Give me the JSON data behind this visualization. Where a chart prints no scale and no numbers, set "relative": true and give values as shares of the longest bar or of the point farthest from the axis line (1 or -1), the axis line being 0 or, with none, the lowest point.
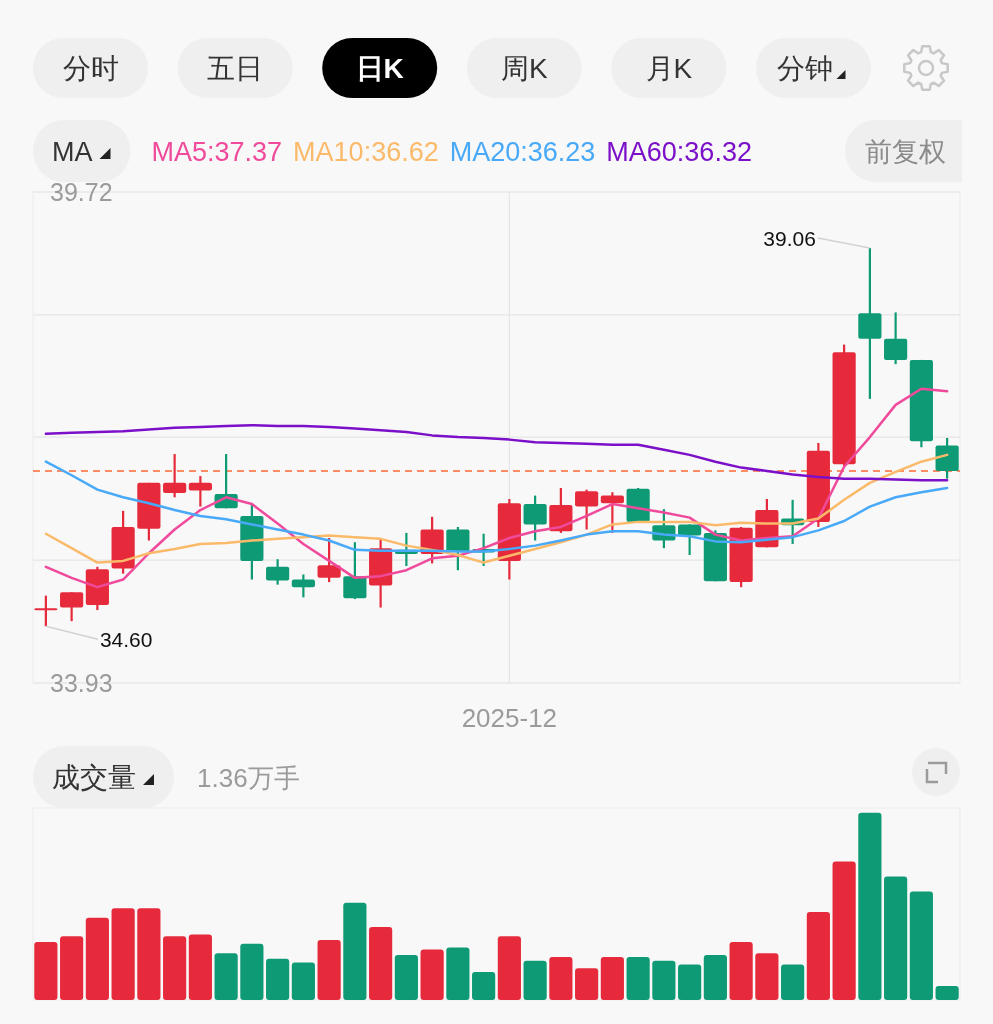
{
  "chart_data": [
    {
      "type": "other",
      "categories": [
        "分时",
        "五日",
        "日K",
        "周K",
        "月K",
        "分钟"
      ],
      "colors": [
        "#efefef",
        "#efefef",
        "#000000",
        "#efefef",
        "#efefef",
        "#efefef"
      ]
    },
    {
      "type": "candlestick",
      "categories": [
        null,
        null,
        null,
        null,
        null,
        null,
        null,
        null,
        null,
        null,
        null,
        null,
        null,
        null,
        null,
        null,
        null,
        null,
        "2025-12",
        null,
        null,
        null,
        null,
        null,
        null,
        null,
        null,
        null,
        null,
        null,
        null,
        null,
        null,
        null,
        null,
        null
      ],
      "ohlc": [
        [
          34.8,
          34.96,
          34.6,
          34.8
        ],
        [
          34.82,
          35.0,
          34.66,
          35.0
        ],
        [
          34.85,
          35.3,
          34.79,
          35.27
        ],
        [
          35.28,
          35.96,
          35.22,
          35.77
        ],
        [
          35.75,
          36.29,
          35.61,
          36.29
        ],
        [
          36.17,
          36.63,
          36.12,
          36.29
        ],
        [
          36.2,
          36.37,
          36.01,
          36.29
        ],
        [
          36.16,
          36.63,
          35.99,
          35.99
        ],
        [
          35.9,
          36.03,
          35.15,
          35.37
        ],
        [
          35.3,
          35.39,
          35.09,
          35.14
        ],
        [
          35.15,
          35.21,
          34.94,
          35.06
        ],
        [
          35.17,
          35.64,
          35.12,
          35.32
        ],
        [
          35.19,
          35.59,
          34.92,
          34.93
        ],
        [
          35.08,
          35.64,
          34.82,
          35.52
        ],
        [
          35.5,
          35.7,
          35.31,
          35.45
        ],
        [
          35.45,
          35.89,
          35.34,
          35.74
        ],
        [
          35.74,
          35.77,
          35.26,
          35.48
        ],
        [
          35.51,
          35.69,
          35.31,
          35.47
        ],
        [
          35.37,
          36.1,
          35.15,
          36.05
        ],
        [
          36.04,
          36.14,
          35.61,
          35.8
        ],
        [
          35.72,
          36.23,
          35.7,
          36.03
        ],
        [
          36.01,
          36.21,
          35.74,
          36.19
        ],
        [
          36.05,
          36.18,
          35.7,
          36.14
        ],
        [
          36.22,
          36.23,
          35.83,
          35.83
        ],
        [
          35.79,
          35.98,
          35.52,
          35.61
        ],
        [
          35.8,
          35.8,
          35.44,
          35.67
        ],
        [
          35.7,
          35.73,
          35.13,
          35.13
        ],
        [
          35.12,
          35.77,
          35.06,
          35.76
        ],
        [
          35.53,
          36.1,
          35.53,
          35.97
        ],
        [
          35.87,
          36.09,
          35.57,
          35.79
        ],
        [
          35.83,
          36.76,
          35.77,
          36.67
        ],
        [
          36.51,
          37.92,
          36.49,
          37.83
        ],
        [
          38.29,
          39.06,
          37.28,
          37.99
        ],
        [
          37.99,
          38.3,
          37.69,
          37.74
        ],
        [
          37.74,
          37.74,
          36.71,
          36.78
        ],
        [
          36.73,
          36.82,
          36.34,
          36.43
        ]
      ],
      "colors": [
        "#e62a3b",
        "#e62a3b",
        "#e62a3b",
        "#e62a3b",
        "#e62a3b",
        "#e62a3b",
        "#e62a3b",
        "#0e9a74",
        "#0e9a74",
        "#0e9a74",
        "#0e9a74",
        "#e62a3b",
        "#0e9a74",
        "#e62a3b",
        "#0e9a74",
        "#e62a3b",
        "#0e9a74",
        "#0e9a74",
        "#e62a3b",
        "#0e9a74",
        "#e62a3b",
        "#e62a3b",
        "#e62a3b",
        "#0e9a74",
        "#0e9a74",
        "#0e9a74",
        "#0e9a74",
        "#e62a3b",
        "#e62a3b",
        "#0e9a74",
        "#e62a3b",
        "#e62a3b",
        "#0e9a74",
        "#0e9a74",
        "#0e9a74",
        "#0e9a74"
      ],
      "ylim": [
        33.93,
        39.72
      ],
      "yticks": [
        39.72,
        {
          "value": 38.27,
          "label": null
        },
        {
          "value": 36.83,
          "label": null
        },
        {
          "value": 35.38,
          "label": null
        },
        33.93
      ],
      "grid": true,
      "legend": "top",
      "legend_title": "MA",
      "series": [
        {
          "name": "MA5:37.37",
          "type": "line",
          "color": "#ef4a9b",
          "values": [
            35.3,
            35.17,
            35.06,
            35.15,
            35.46,
            35.74,
            35.97,
            36.12,
            36.04,
            35.81,
            35.57,
            35.37,
            35.17,
            35.19,
            35.26,
            35.4,
            35.43,
            35.52,
            35.64,
            35.72,
            35.77,
            35.9,
            36.04,
            35.99,
            35.94,
            35.88,
            35.68,
            35.61,
            35.64,
            35.66,
            35.87,
            36.48,
            36.83,
            37.21,
            37.4,
            37.37
          ]
        },
        {
          "name": "MA10:36.62",
          "type": "line",
          "color": "#fbba6a",
          "values": [
            35.69,
            35.52,
            35.35,
            35.37,
            35.46,
            35.51,
            35.57,
            35.58,
            35.61,
            35.63,
            35.65,
            35.67,
            35.65,
            35.63,
            35.55,
            35.5,
            35.44,
            35.35,
            35.43,
            35.51,
            35.59,
            35.68,
            35.8,
            35.83,
            35.83,
            35.83,
            35.79,
            35.82,
            35.81,
            35.81,
            35.87,
            36.09,
            36.29,
            36.42,
            36.54,
            36.62
          ]
        },
        {
          "name": "MA20:36.23",
          "type": "line",
          "color": "#48a9f8",
          "values": [
            36.54,
            36.38,
            36.21,
            36.12,
            36.05,
            35.97,
            35.9,
            35.86,
            35.8,
            35.74,
            35.68,
            35.61,
            35.5,
            35.49,
            35.49,
            35.49,
            35.48,
            35.48,
            35.51,
            35.55,
            35.61,
            35.68,
            35.72,
            35.72,
            35.68,
            35.66,
            35.6,
            35.59,
            35.62,
            35.65,
            35.73,
            35.84,
            36.01,
            36.12,
            36.18,
            36.23
          ]
        },
        {
          "name": "MA60:36.32",
          "type": "line",
          "color": "#7b10c8",
          "values": [
            36.87,
            36.88,
            36.89,
            36.9,
            36.92,
            36.94,
            36.95,
            36.96,
            36.97,
            36.96,
            36.96,
            36.95,
            36.93,
            36.91,
            36.89,
            36.85,
            36.83,
            36.82,
            36.8,
            36.77,
            36.76,
            36.75,
            36.74,
            36.74,
            36.68,
            36.62,
            36.54,
            36.47,
            36.43,
            36.39,
            36.36,
            36.34,
            36.34,
            36.33,
            36.32,
            36.32
          ]
        }
      ],
      "ref_lines": [
        {
          "axis": "y",
          "value": 36.43,
          "color": "#ff6a33",
          "line_style": "dashed"
        }
      ],
      "annotations": [
        "前复权",
        "39.06",
        "34.60"
      ]
    },
    {
      "type": "bar",
      "title": "成交量",
      "subtitle": "1.36万手",
      "relative": true,
      "categories": [
        null,
        null,
        null,
        null,
        null,
        null,
        null,
        null,
        null,
        null,
        null,
        null,
        null,
        null,
        null,
        null,
        null,
        null,
        null,
        null,
        null,
        null,
        null,
        null,
        null,
        null,
        null,
        null,
        null,
        null,
        null,
        null,
        null,
        null,
        null,
        null
      ],
      "values": [
        0.31,
        0.34,
        0.44,
        0.49,
        0.49,
        0.34,
        0.35,
        0.25,
        0.3,
        0.22,
        0.2,
        0.32,
        0.52,
        0.39,
        0.24,
        0.27,
        0.28,
        0.15,
        0.34,
        0.21,
        0.23,
        0.17,
        0.23,
        0.23,
        0.21,
        0.19,
        0.24,
        0.31,
        0.25,
        0.19,
        0.47,
        0.74,
        1,
        0.66,
        0.58,
        0.075
      ],
      "colors": [
        "#e62a3b",
        "#e62a3b",
        "#e62a3b",
        "#e62a3b",
        "#e62a3b",
        "#e62a3b",
        "#e62a3b",
        "#0e9a74",
        "#0e9a74",
        "#0e9a74",
        "#0e9a74",
        "#e62a3b",
        "#0e9a74",
        "#e62a3b",
        "#0e9a74",
        "#e62a3b",
        "#0e9a74",
        "#0e9a74",
        "#e62a3b",
        "#0e9a74",
        "#e62a3b",
        "#e62a3b",
        "#e62a3b",
        "#0e9a74",
        "#0e9a74",
        "#0e9a74",
        "#0e9a74",
        "#e62a3b",
        "#e62a3b",
        "#0e9a74",
        "#e62a3b",
        "#e62a3b",
        "#0e9a74",
        "#0e9a74",
        "#0e9a74",
        "#0e9a74"
      ]
    }
  ]
}
